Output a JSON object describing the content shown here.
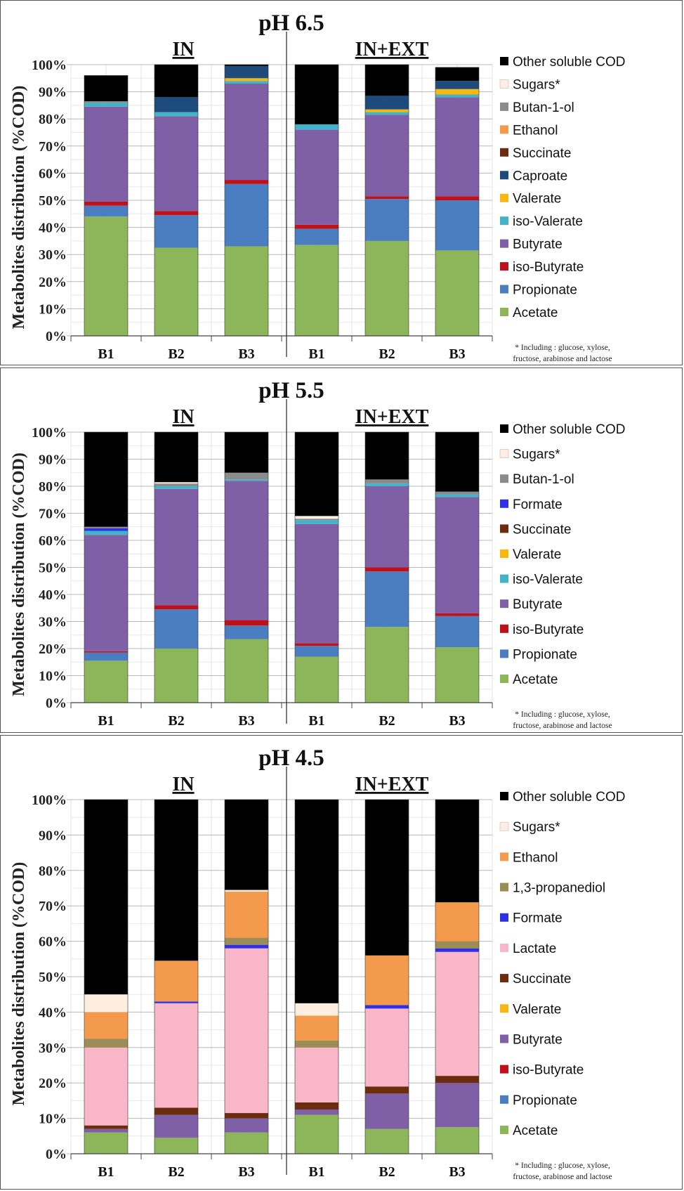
{
  "chart_data": [
    {
      "type": "bar",
      "title": "pH 6.5",
      "ylabel": "Metabolites distribution (%COD)",
      "ylim": [
        0,
        100
      ],
      "yticks": [
        "0%",
        "10%",
        "20%",
        "30%",
        "40%",
        "50%",
        "60%",
        "70%",
        "80%",
        "90%",
        "100%"
      ],
      "groups": [
        "IN",
        "IN+EXT"
      ],
      "categories": [
        "B1",
        "B2",
        "B3",
        "B1",
        "B2",
        "B3"
      ],
      "note_line1": "* Including : glucose, xylose,",
      "note_line2": "fructose, arabinose and lactose",
      "series": [
        {
          "name": "Acetate",
          "color": "#8db55a",
          "values": [
            44,
            32.5,
            33,
            33.5,
            35,
            31.5
          ]
        },
        {
          "name": "Propionate",
          "color": "#4a7ec1",
          "values": [
            4,
            12,
            23,
            6,
            15.5,
            18.5
          ]
        },
        {
          "name": "iso-Butyrate",
          "color": "#c0111b",
          "values": [
            1.5,
            1.5,
            1.5,
            1.5,
            1,
            1.5
          ]
        },
        {
          "name": "Butyrate",
          "color": "#7f5fa5",
          "values": [
            35,
            35,
            35.5,
            35,
            30,
            36.5
          ]
        },
        {
          "name": "iso-Valerate",
          "color": "#45b3c7",
          "values": [
            1.5,
            1.5,
            1,
            2,
            1,
            1
          ]
        },
        {
          "name": "Valerate",
          "color": "#f8b70f",
          "values": [
            0,
            0,
            1,
            0,
            1,
            2
          ]
        },
        {
          "name": "Caproate",
          "color": "#1f4b7c",
          "values": [
            0,
            5.5,
            4.5,
            0,
            5,
            3
          ]
        },
        {
          "name": "Succinate",
          "color": "#6b2c0f",
          "values": [
            0,
            0,
            0,
            0,
            0,
            0
          ]
        },
        {
          "name": "Ethanol",
          "color": "#f39a4c",
          "values": [
            0,
            0,
            0,
            0,
            0,
            0
          ]
        },
        {
          "name": "Butan-1-ol",
          "color": "#8b8b8b",
          "values": [
            0.5,
            0,
            0,
            0,
            0,
            0
          ]
        },
        {
          "name": "Sugars*",
          "color": "#fdeee0",
          "values": [
            0,
            0,
            0,
            0,
            0,
            0
          ]
        },
        {
          "name": "Other soluble COD",
          "color": "#000000",
          "values": [
            9.5,
            12,
            0.5,
            22,
            11.5,
            5
          ]
        }
      ]
    },
    {
      "type": "bar",
      "title": "pH 5.5",
      "ylabel": "Metabolites distribution (%COD)",
      "ylim": [
        0,
        100
      ],
      "yticks": [
        "0%",
        "10%",
        "20%",
        "30%",
        "40%",
        "50%",
        "60%",
        "70%",
        "80%",
        "90%",
        "100%"
      ],
      "groups": [
        "IN",
        "IN+EXT"
      ],
      "categories": [
        "B1",
        "B2",
        "B3",
        "B1",
        "B2",
        "B3"
      ],
      "note_line1": "* Including : glucose, xylose,",
      "note_line2": "fructose, arabinose and lactose",
      "series": [
        {
          "name": "Acetate",
          "color": "#8db55a",
          "values": [
            15.5,
            20,
            23.5,
            17,
            28,
            20.5
          ]
        },
        {
          "name": "Propionate",
          "color": "#4a7ec1",
          "values": [
            3,
            14.5,
            5,
            4,
            20.5,
            11.5
          ]
        },
        {
          "name": "iso-Butyrate",
          "color": "#c0111b",
          "values": [
            0.5,
            1.5,
            2,
            1,
            1.5,
            1
          ]
        },
        {
          "name": "Butyrate",
          "color": "#7f5fa5",
          "values": [
            43,
            43,
            51.5,
            44,
            30,
            43
          ]
        },
        {
          "name": "iso-Valerate",
          "color": "#45b3c7",
          "values": [
            1.5,
            1,
            0.5,
            1.5,
            1,
            1
          ]
        },
        {
          "name": "Valerate",
          "color": "#f8b70f",
          "values": [
            0,
            0,
            0,
            0,
            0,
            0
          ]
        },
        {
          "name": "Succinate",
          "color": "#6b2c0f",
          "values": [
            0,
            0,
            0,
            0,
            0,
            0
          ]
        },
        {
          "name": "Formate",
          "color": "#2f2fe6",
          "values": [
            1,
            0,
            0,
            0,
            0,
            0
          ]
        },
        {
          "name": "Butan-1-ol",
          "color": "#8b8b8b",
          "values": [
            0.5,
            1,
            2.5,
            0.5,
            1.5,
            1
          ]
        },
        {
          "name": "Sugars*",
          "color": "#fdeee0",
          "values": [
            0,
            0.5,
            0,
            1,
            0,
            0
          ]
        },
        {
          "name": "Other soluble COD",
          "color": "#000000",
          "values": [
            35,
            18.5,
            15,
            31,
            17.5,
            22
          ]
        }
      ]
    },
    {
      "type": "bar",
      "title": "pH 4.5",
      "ylabel": "Metabolites distribution (%COD)",
      "ylim": [
        0,
        100
      ],
      "yticks": [
        "0%",
        "10%",
        "20%",
        "30%",
        "40%",
        "50%",
        "60%",
        "70%",
        "80%",
        "90%",
        "100%"
      ],
      "groups": [
        "IN",
        "IN+EXT"
      ],
      "categories": [
        "B1",
        "B2",
        "B3",
        "B1",
        "B2",
        "B3"
      ],
      "note_line1": "* Including : glucose, xylose,",
      "note_line2": "fructose, arabinose and lactose",
      "series": [
        {
          "name": "Acetate",
          "color": "#8db55a",
          "values": [
            6,
            4.5,
            6,
            11,
            7,
            7.5
          ]
        },
        {
          "name": "Propionate",
          "color": "#4a7ec1",
          "values": [
            0,
            0,
            0,
            0,
            0,
            0
          ]
        },
        {
          "name": "iso-Butyrate",
          "color": "#c0111b",
          "values": [
            0,
            0,
            0,
            0,
            0,
            0
          ]
        },
        {
          "name": "Butyrate",
          "color": "#7f5fa5",
          "values": [
            1,
            6.5,
            4,
            1.5,
            10,
            12.5
          ]
        },
        {
          "name": "Valerate",
          "color": "#f8b70f",
          "values": [
            0,
            0,
            0,
            0,
            0,
            0
          ]
        },
        {
          "name": "Succinate",
          "color": "#6b2c0f",
          "values": [
            1,
            2,
            1.5,
            2,
            2,
            2
          ]
        },
        {
          "name": "Lactate",
          "color": "#f8b6c8",
          "values": [
            22,
            29.5,
            46.5,
            15.5,
            22,
            35
          ]
        },
        {
          "name": "Formate",
          "color": "#2f2fe6",
          "values": [
            0,
            0.5,
            1,
            0,
            1,
            1
          ]
        },
        {
          "name": "1,3-propanediol",
          "color": "#9c8c55",
          "values": [
            2.5,
            0,
            2,
            2,
            0,
            2
          ]
        },
        {
          "name": "Ethanol",
          "color": "#f39a4c",
          "values": [
            7.5,
            11.5,
            13,
            7,
            14,
            11
          ]
        },
        {
          "name": "Sugars*",
          "color": "#fdeee0",
          "values": [
            5,
            0,
            0.5,
            3.5,
            0,
            0
          ]
        },
        {
          "name": "Other soluble COD",
          "color": "#000000",
          "values": [
            55,
            45.5,
            25.5,
            57.5,
            44,
            29
          ]
        }
      ]
    }
  ]
}
